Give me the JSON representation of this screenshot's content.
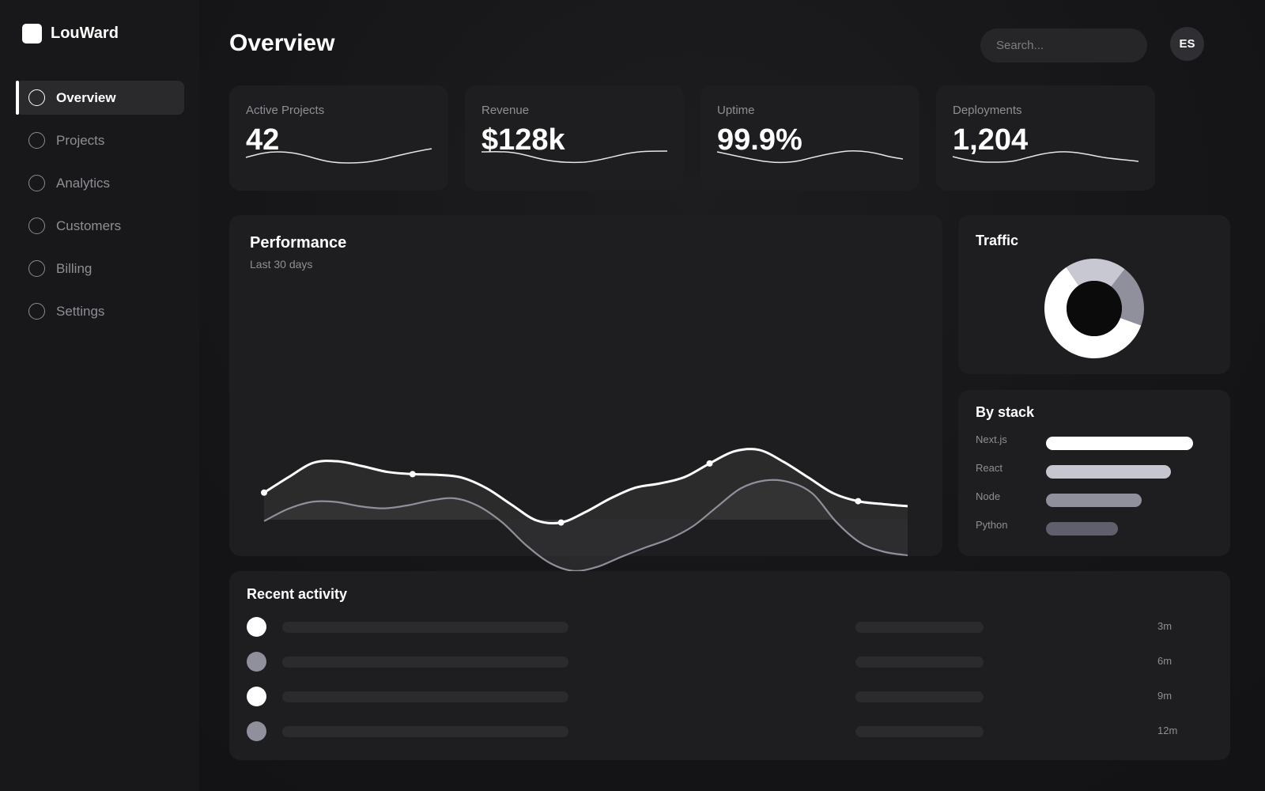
{
  "app": {
    "name": "LouWard"
  },
  "sidebar": {
    "items": [
      {
        "label": "Overview",
        "active": true
      },
      {
        "label": "Projects"
      },
      {
        "label": "Analytics"
      },
      {
        "label": "Customers"
      },
      {
        "label": "Billing"
      },
      {
        "label": "Settings"
      }
    ]
  },
  "header": {
    "title": "Overview",
    "search_placeholder": "Search...",
    "avatar_initials": "ES"
  },
  "stats": [
    {
      "label": "Active Projects",
      "value": "42"
    },
    {
      "label": "Revenue",
      "value": "$128k"
    },
    {
      "label": "Uptime",
      "value": "99.9%"
    },
    {
      "label": "Deployments",
      "value": "1,204"
    }
  ],
  "performance": {
    "title": "Performance",
    "subtitle": "Last 30 days"
  },
  "traffic": {
    "title": "Traffic",
    "slices": [
      {
        "value": 0.6,
        "color": "#ffffff"
      },
      {
        "value": 0.2,
        "color": "#c7c8d1"
      },
      {
        "value": 0.2,
        "color": "#8f909b"
      }
    ]
  },
  "stack": {
    "title": "By stack",
    "items": [
      {
        "label": "Next.js",
        "value": 1.0,
        "color": "#ffffff"
      },
      {
        "label": "React",
        "value": 0.85,
        "color": "#c5c6cf"
      },
      {
        "label": "Node",
        "value": 0.65,
        "color": "#8f909b"
      },
      {
        "label": "Python",
        "value": 0.49,
        "color": "#5f606b"
      }
    ]
  },
  "activity": {
    "title": "Recent activity",
    "items": [
      {
        "time": "3m",
        "color": "#ffffff"
      },
      {
        "time": "6m",
        "color": "#8f909b"
      },
      {
        "time": "9m",
        "color": "#ffffff"
      },
      {
        "time": "12m",
        "color": "#8f909b"
      }
    ]
  },
  "chart_data": {
    "type": "area",
    "series": [
      {
        "values": [
          38,
          60,
          80,
          82,
          75,
          67,
          64,
          63,
          59,
          44,
          21,
          -1,
          -4,
          11,
          30,
          45,
          51,
          60,
          79,
          96,
          98,
          81,
          59,
          37,
          26,
          22,
          19
        ]
      },
      {
        "values": [
          -2,
          15,
          25,
          25,
          19,
          16,
          20,
          27,
          30,
          19,
          -4,
          -36,
          -61,
          -72,
          -66,
          -52,
          -39,
          -27,
          -9,
          18,
          44,
          55,
          53,
          37,
          -3,
          -32,
          -45,
          -50
        ]
      }
    ],
    "markers_series0": [
      0,
      6,
      12,
      18,
      24
    ]
  }
}
